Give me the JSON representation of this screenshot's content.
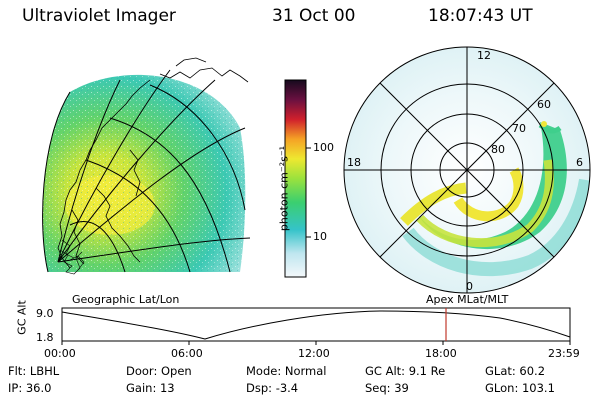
{
  "header": {
    "instrument": "Ultraviolet Imager",
    "date": "31 Oct 00",
    "time": "18:07:43 UT"
  },
  "colorbar": {
    "unit_label": "photon cm⁻²s⁻¹",
    "ticks": [
      "100",
      "10"
    ]
  },
  "polar_plot": {
    "mlt_labels": [
      "12",
      "18",
      "6",
      "0"
    ],
    "mlat_labels": [
      "60",
      "70",
      "80"
    ]
  },
  "panel_labels": {
    "left": "Geographic Lat/Lon",
    "right": "Apex  MLat/MLT"
  },
  "altitude_plot": {
    "ylabel": "GC Alt",
    "y_ticks": [
      "9.0",
      "1.8"
    ],
    "x_ticks": [
      "00:00",
      "06:00",
      "12:00",
      "18:00",
      "23:59"
    ],
    "current_time_marker": "18:07",
    "marker_color": "#c0392b"
  },
  "info": {
    "row1": [
      {
        "label": "Flt:",
        "value": "LBHL"
      },
      {
        "label": "Door:",
        "value": "Open"
      },
      {
        "label": "Mode:",
        "value": "Normal"
      },
      {
        "label": "GC Alt:",
        "value": "9.1 Re"
      },
      {
        "label": "GLat:",
        "value": "60.2"
      }
    ],
    "row2": [
      {
        "label": "IP:",
        "value": "36.0"
      },
      {
        "label": "Gain:",
        "value": "13"
      },
      {
        "label": "Dsp:",
        "value": "-3.4"
      },
      {
        "label": "Seq:",
        "value": "39"
      },
      {
        "label": "GLon:",
        "value": "103.1"
      }
    ]
  }
}
